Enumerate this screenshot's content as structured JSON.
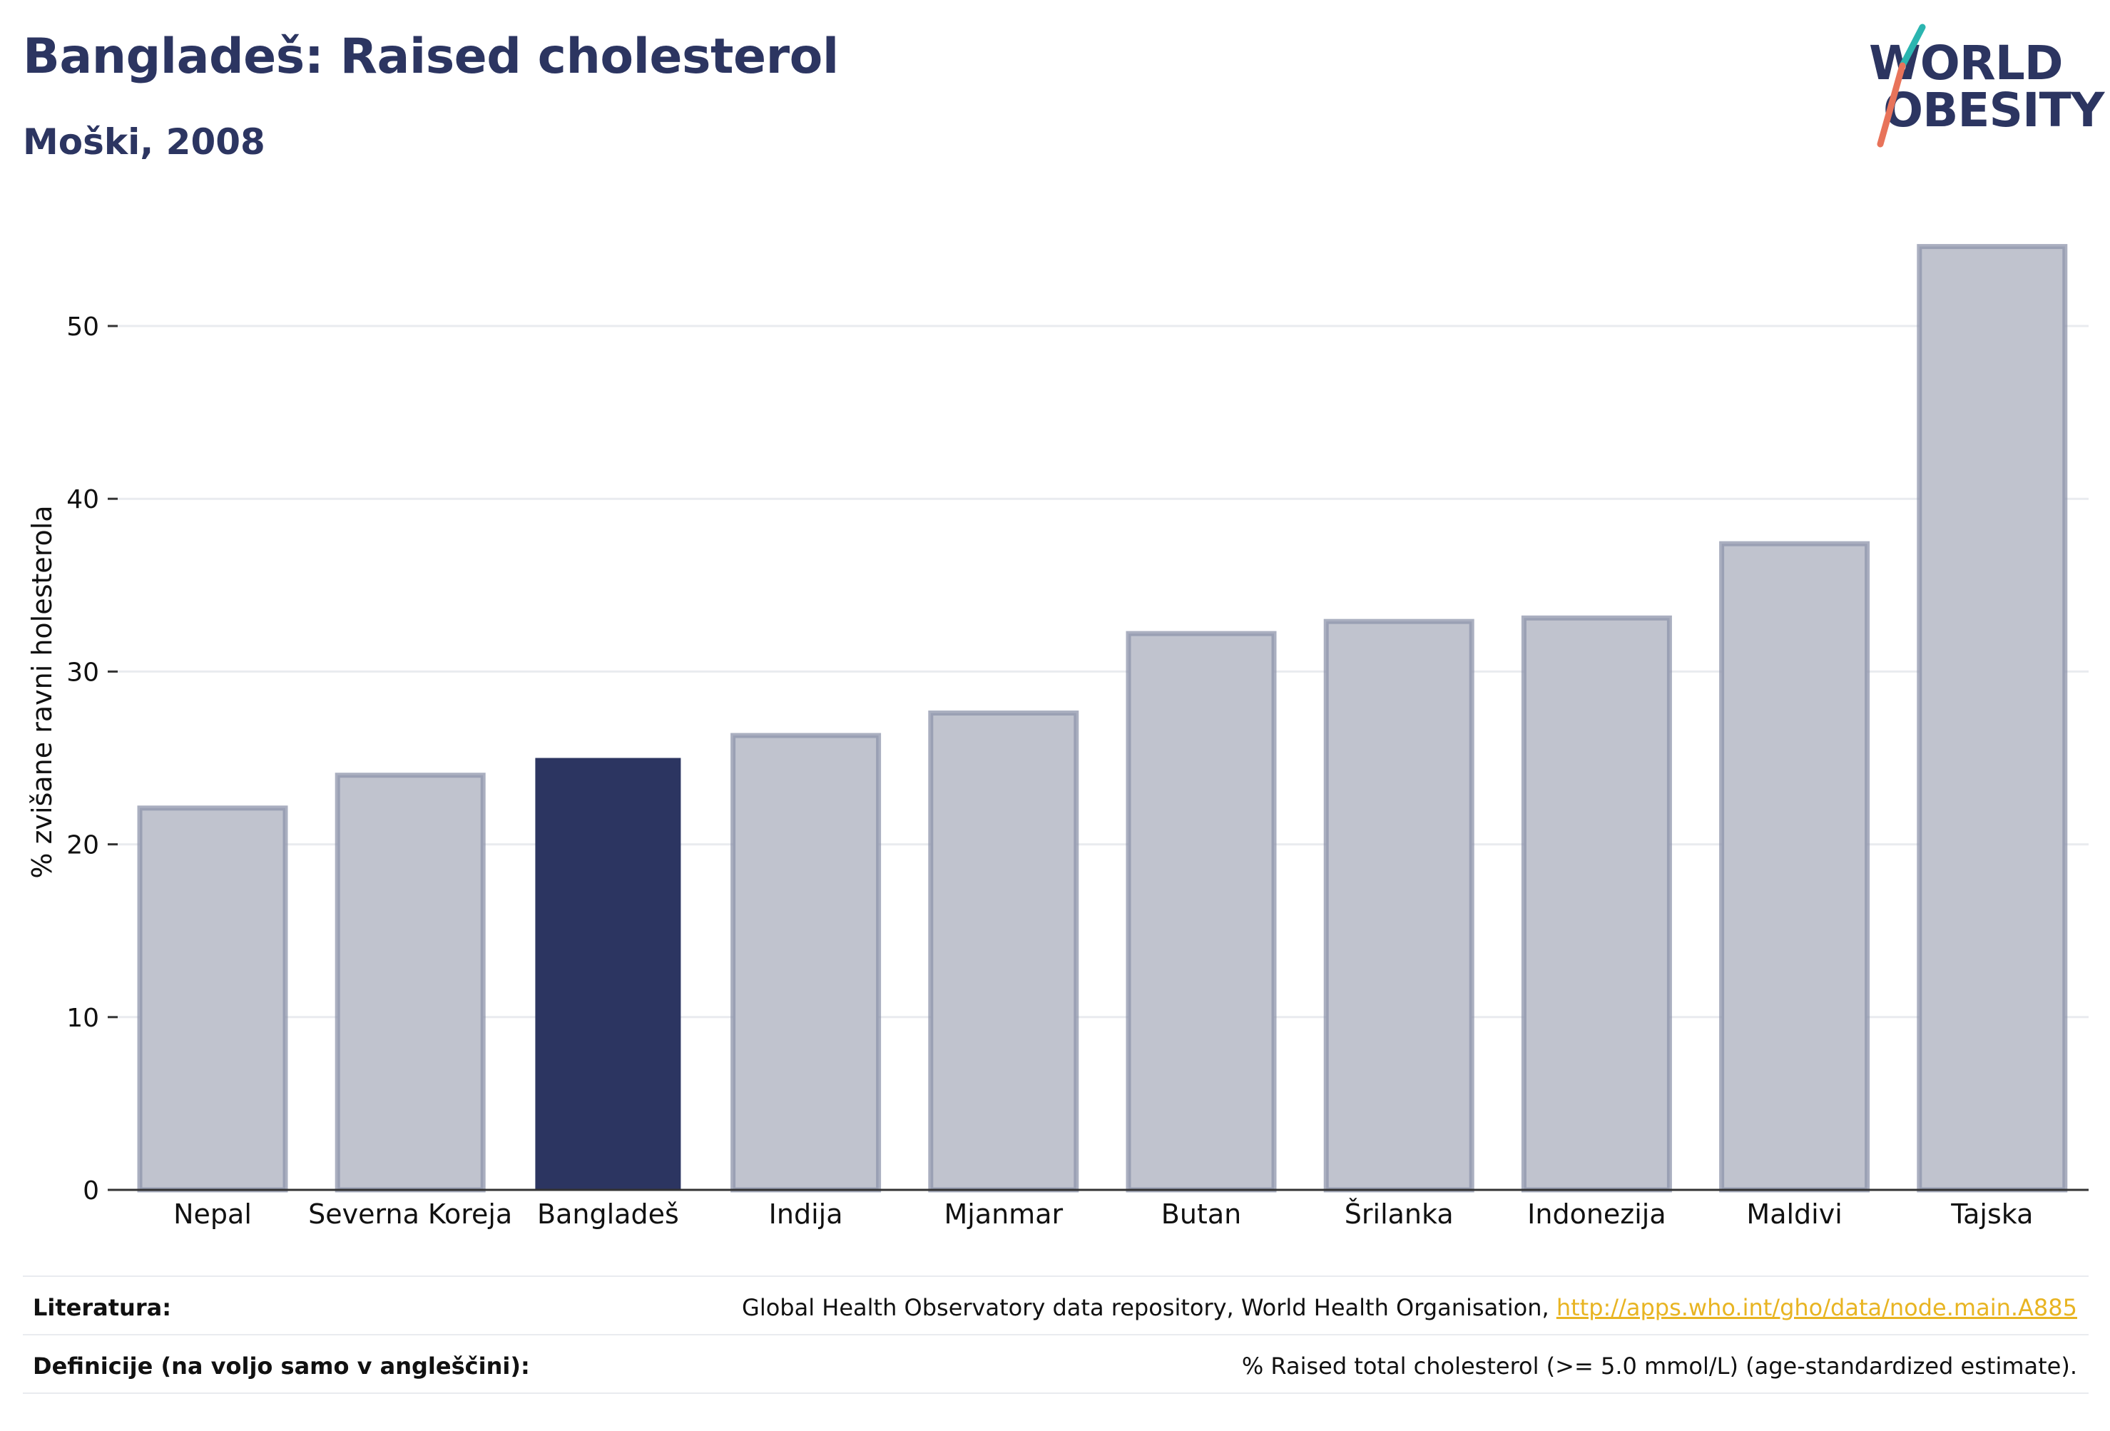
{
  "header": {
    "title": "Bangladeš: Raised cholesterol",
    "subtitle": "Moški, 2008"
  },
  "logo": {
    "line1": "WORLD",
    "line2": "OBESITY",
    "colors": {
      "text": "#2c3561",
      "slash_top": "#2bb5b0",
      "slash_bottom": "#e8735a"
    }
  },
  "chart_data": {
    "type": "bar",
    "title": "Bangladeš: Raised cholesterol",
    "subtitle": "Moški, 2008",
    "xlabel": "",
    "ylabel": "% zvišane ravni holesterola",
    "categories": [
      "Nepal",
      "Severna Koreja",
      "Bangladeš",
      "Indija",
      "Mjanmar",
      "Butan",
      "Šrilanka",
      "Indonezija",
      "Maldivi",
      "Tajska"
    ],
    "values": [
      22.1,
      24.0,
      25.0,
      26.3,
      27.6,
      32.2,
      32.9,
      33.1,
      37.4,
      54.6
    ],
    "highlight": "Bangladeš",
    "ylim": [
      0,
      57
    ],
    "yticks": [
      0,
      10,
      20,
      30,
      40,
      50
    ],
    "grid": true,
    "colors": {
      "bar": "#c0c3ce",
      "bar_border": "#8e94ab",
      "highlight": "#2c3561",
      "grid": "#e9ebef",
      "axis": "#333333"
    }
  },
  "footer": {
    "source_label": "Literatura:",
    "source_text": "Global Health Observatory data repository, World Health Organisation, ",
    "source_link": "http://apps.who.int/gho/data/node.main.A885",
    "definition_label": "Definicije (na voljo samo v angleščini):",
    "definition_text": "% Raised total cholesterol (>= 5.0 mmol/L) (age-standardized estimate)."
  }
}
